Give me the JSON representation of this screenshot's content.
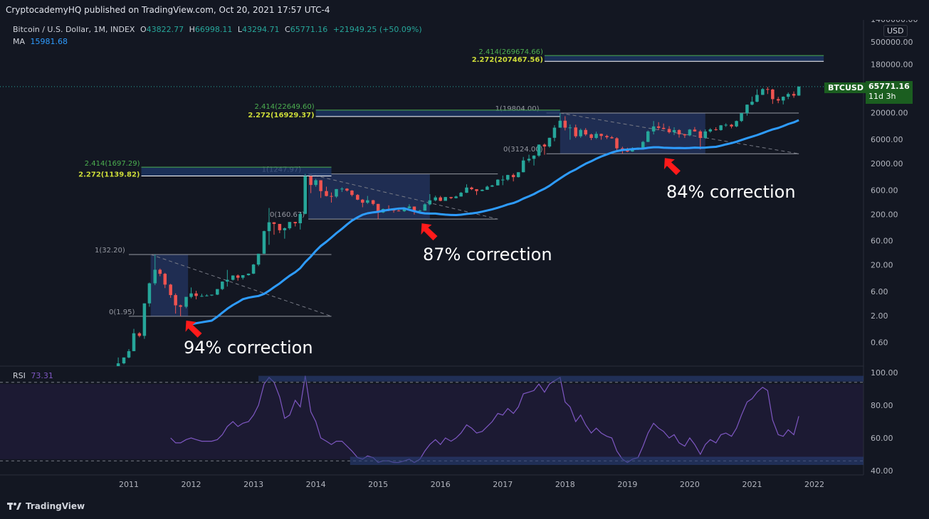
{
  "header": {
    "publisher": "CryptocademyHQ published on TradingView.com, Oct 20, 2021 17:57 UTC-4"
  },
  "legend": {
    "symbol": "Bitcoin / U.S. Dollar, 1M, INDEX",
    "o_label": "O",
    "o_value": "43822.77",
    "h_label": "H",
    "h_value": "66998.11",
    "l_label": "L",
    "l_value": "43294.71",
    "c_label": "C",
    "c_value": "65771.16",
    "change": "+21949.25 (+50.09%)",
    "ma_label": "MA",
    "ma_value": "15981.68",
    "rsi_label": "RSI",
    "rsi_value": "73.31"
  },
  "price_badge": {
    "symbol": "BTCUSD",
    "price": "65771.16",
    "countdown": "11d 3h"
  },
  "currency": "USD",
  "branding": "TradingView",
  "colors": {
    "up": "#26a69a",
    "down": "#ef5350",
    "ma": "#2e9cff",
    "rsi": "#7e57c2",
    "fib_green": "#4caf50",
    "box": "#2a3f7a",
    "arrow": "#ff1a1a"
  },
  "chart_data": {
    "type": "candlestick",
    "scale": "log",
    "y_ticks": [
      "1400000.00",
      "500000.00",
      "180000.00",
      "60000.00",
      "20000.00",
      "6000.00",
      "2000.00",
      "600.00",
      "200.00",
      "60.00",
      "20.00",
      "6.00",
      "2.00",
      "0.60"
    ],
    "x_ticks": [
      "2011",
      "2012",
      "2013",
      "2014",
      "2015",
      "2016",
      "2017",
      "2018",
      "2019",
      "2020",
      "2021",
      "2022"
    ],
    "rsi_ticks": [
      "100.00",
      "80.00",
      "60.00",
      "40.00"
    ],
    "ohlc": [
      [
        2010.75,
        0.06,
        0.2,
        0.06,
        0.2
      ],
      [
        2010.83,
        0.2,
        0.3,
        0.18,
        0.23
      ],
      [
        2010.92,
        0.23,
        0.3,
        0.22,
        0.3
      ],
      [
        2011.0,
        0.3,
        0.44,
        0.29,
        0.4
      ],
      [
        2011.08,
        0.4,
        1.1,
        0.4,
        0.9
      ],
      [
        2011.17,
        0.9,
        0.95,
        0.75,
        0.8
      ],
      [
        2011.25,
        0.8,
        3.5,
        0.7,
        3.5
      ],
      [
        2011.33,
        3.5,
        9,
        3,
        8.7
      ],
      [
        2011.42,
        8.7,
        32,
        8,
        16.1
      ],
      [
        2011.5,
        16.1,
        17,
        12,
        13.4
      ],
      [
        2011.58,
        13.4,
        14,
        7,
        8.2
      ],
      [
        2011.67,
        8.2,
        8.5,
        4.5,
        5.1
      ],
      [
        2011.75,
        5.1,
        5.5,
        2.2,
        3.2
      ],
      [
        2011.83,
        3.2,
        3.3,
        1.95,
        3
      ],
      [
        2011.92,
        3,
        4.5,
        2.8,
        4.7
      ],
      [
        2012.0,
        4.7,
        7.2,
        4.4,
        5.5
      ],
      [
        2012.08,
        5.5,
        6.2,
        4.2,
        4.9
      ],
      [
        2012.17,
        4.9,
        5.4,
        4.7,
        4.9
      ],
      [
        2012.25,
        4.9,
        5.3,
        4.8,
        5
      ],
      [
        2012.33,
        5,
        5.2,
        4.9,
        5.2
      ],
      [
        2012.42,
        5.2,
        6.7,
        5.1,
        6.7
      ],
      [
        2012.5,
        6.7,
        9.5,
        6.4,
        9.4
      ],
      [
        2012.58,
        9.4,
        16,
        7.5,
        10.2
      ],
      [
        2012.67,
        10.2,
        12.5,
        9.9,
        12.4
      ],
      [
        2012.75,
        12.4,
        13,
        9.8,
        11.2
      ],
      [
        2012.83,
        11.2,
        12.6,
        10.3,
        12.6
      ],
      [
        2012.92,
        12.6,
        13.6,
        12.3,
        13.5
      ],
      [
        2013.0,
        13.5,
        21,
        13.2,
        20.4
      ],
      [
        2013.08,
        20.4,
        33,
        19,
        33.4
      ],
      [
        2013.17,
        33.4,
        95,
        33,
        93
      ],
      [
        2013.25,
        93,
        266,
        50,
        139
      ],
      [
        2013.33,
        139,
        140,
        79,
        129
      ],
      [
        2013.42,
        129,
        129,
        85,
        97
      ],
      [
        2013.5,
        97,
        110,
        66,
        106
      ],
      [
        2013.58,
        106,
        140,
        99,
        141
      ],
      [
        2013.67,
        141,
        142,
        115,
        133
      ],
      [
        2013.75,
        133,
        220,
        100,
        204
      ],
      [
        2013.83,
        204,
        1247.97,
        200,
        1130
      ],
      [
        2013.92,
        1130,
        1150,
        522,
        757
      ],
      [
        2014.0,
        757,
        1000,
        700,
        938
      ],
      [
        2014.08,
        938,
        940,
        420,
        573
      ],
      [
        2014.17,
        573,
        700,
        450,
        458
      ],
      [
        2014.25,
        458,
        538,
        340,
        447
      ],
      [
        2014.33,
        447,
        630,
        420,
        628
      ],
      [
        2014.42,
        628,
        680,
        550,
        640
      ],
      [
        2014.5,
        640,
        655,
        560,
        586
      ],
      [
        2014.58,
        586,
        600,
        450,
        481
      ],
      [
        2014.67,
        481,
        500,
        380,
        388
      ],
      [
        2014.75,
        388,
        400,
        275,
        338
      ],
      [
        2014.83,
        338,
        460,
        320,
        378
      ],
      [
        2014.92,
        378,
        385,
        300,
        320
      ],
      [
        2015.0,
        320,
        320,
        160.67,
        217
      ],
      [
        2015.08,
        217,
        260,
        211,
        254
      ],
      [
        2015.17,
        254,
        300,
        230,
        244
      ],
      [
        2015.25,
        244,
        260,
        215,
        236
      ],
      [
        2015.33,
        236,
        247,
        228,
        230
      ],
      [
        2015.42,
        230,
        265,
        222,
        264
      ],
      [
        2015.5,
        264,
        315,
        260,
        284
      ],
      [
        2015.58,
        284,
        285,
        198,
        230
      ],
      [
        2015.67,
        230,
        245,
        224,
        236
      ],
      [
        2015.75,
        236,
        330,
        236,
        314
      ],
      [
        2015.83,
        314,
        500,
        300,
        377
      ],
      [
        2015.92,
        377,
        465,
        360,
        430
      ],
      [
        2016.0,
        430,
        460,
        360,
        368
      ],
      [
        2016.08,
        368,
        440,
        368,
        437
      ],
      [
        2016.17,
        437,
        440,
        400,
        416
      ],
      [
        2016.25,
        416,
        465,
        410,
        448
      ],
      [
        2016.33,
        448,
        550,
        445,
        531
      ],
      [
        2016.42,
        531,
        780,
        525,
        673
      ],
      [
        2016.5,
        673,
        700,
        600,
        624
      ],
      [
        2016.58,
        624,
        625,
        480,
        575
      ],
      [
        2016.67,
        575,
        620,
        570,
        608
      ],
      [
        2016.75,
        608,
        735,
        605,
        700
      ],
      [
        2016.83,
        700,
        760,
        690,
        742
      ],
      [
        2016.92,
        742,
        980,
        740,
        963
      ],
      [
        2017.0,
        963,
        1160,
        750,
        965
      ],
      [
        2017.08,
        965,
        1200,
        910,
        1190
      ],
      [
        2017.17,
        1190,
        1280,
        890,
        1080
      ],
      [
        2017.25,
        1080,
        1350,
        1060,
        1350
      ],
      [
        2017.33,
        1350,
        2700,
        1340,
        2300
      ],
      [
        2017.42,
        2300,
        2990,
        2100,
        2480
      ],
      [
        2017.5,
        2480,
        2920,
        1830,
        2870
      ],
      [
        2017.58,
        2870,
        4750,
        2700,
        4730
      ],
      [
        2017.67,
        4730,
        4980,
        2980,
        4340
      ],
      [
        2017.75,
        4340,
        6470,
        4100,
        6440
      ],
      [
        2017.83,
        6440,
        11400,
        5500,
        10200
      ],
      [
        2017.92,
        10200,
        19804,
        10200,
        14000
      ],
      [
        2018.0,
        14000,
        17200,
        9000,
        10200
      ],
      [
        2018.08,
        10200,
        11800,
        5900,
        10300
      ],
      [
        2018.17,
        10300,
        11700,
        6400,
        6900
      ],
      [
        2018.25,
        6900,
        9800,
        6400,
        9200
      ],
      [
        2018.33,
        9200,
        10000,
        7000,
        7500
      ],
      [
        2018.42,
        7500,
        7800,
        5800,
        6400
      ],
      [
        2018.5,
        6400,
        8500,
        6100,
        7700
      ],
      [
        2018.58,
        7700,
        7800,
        5900,
        7000
      ],
      [
        2018.67,
        7000,
        7400,
        6100,
        6600
      ],
      [
        2018.75,
        6600,
        7000,
        6200,
        6300
      ],
      [
        2018.83,
        6300,
        6600,
        3700,
        4000
      ],
      [
        2018.92,
        4000,
        4300,
        3124,
        3700
      ],
      [
        2019.0,
        3700,
        4100,
        3350,
        3450
      ],
      [
        2019.08,
        3450,
        4200,
        3400,
        3800
      ],
      [
        2019.17,
        3800,
        4150,
        3700,
        4100
      ],
      [
        2019.25,
        4100,
        5600,
        4050,
        5350
      ],
      [
        2019.33,
        5350,
        9000,
        5300,
        8600
      ],
      [
        2019.42,
        8600,
        13800,
        7500,
        10800
      ],
      [
        2019.5,
        10800,
        13100,
        9100,
        10100
      ],
      [
        2019.58,
        10100,
        12300,
        9400,
        9600
      ],
      [
        2019.67,
        9600,
        10900,
        7800,
        8300
      ],
      [
        2019.75,
        8300,
        10400,
        7300,
        9150
      ],
      [
        2019.83,
        9150,
        9500,
        6500,
        7550
      ],
      [
        2019.92,
        7550,
        7750,
        6400,
        7200
      ],
      [
        2020.0,
        7200,
        9600,
        6900,
        9350
      ],
      [
        2020.08,
        9350,
        10500,
        8500,
        8600
      ],
      [
        2020.17,
        8600,
        9200,
        3800,
        6400
      ],
      [
        2020.25,
        6400,
        9450,
        6150,
        8600
      ],
      [
        2020.33,
        8600,
        10000,
        8100,
        9450
      ],
      [
        2020.42,
        9450,
        10400,
        8900,
        9150
      ],
      [
        2020.5,
        9150,
        11500,
        8900,
        11350
      ],
      [
        2020.58,
        11350,
        12450,
        10600,
        11650
      ],
      [
        2020.67,
        11650,
        12100,
        9900,
        10800
      ],
      [
        2020.75,
        10800,
        14100,
        10400,
        13800
      ],
      [
        2020.83,
        13800,
        19850,
        13200,
        19700
      ],
      [
        2020.92,
        19700,
        29300,
        17600,
        29000
      ],
      [
        2021.0,
        29000,
        41900,
        28200,
        33100
      ],
      [
        2021.08,
        33100,
        58300,
        32300,
        45200
      ],
      [
        2021.17,
        45200,
        61800,
        45000,
        58800
      ],
      [
        2021.25,
        58800,
        64900,
        47000,
        57700
      ],
      [
        2021.33,
        57700,
        59500,
        30000,
        37300
      ],
      [
        2021.42,
        37300,
        41300,
        31000,
        35000
      ],
      [
        2021.5,
        35000,
        42300,
        29300,
        41500
      ],
      [
        2021.58,
        41500,
        50500,
        37300,
        47100
      ],
      [
        2021.67,
        47100,
        52900,
        39600,
        43800
      ],
      [
        2021.75,
        43822.77,
        66998.11,
        43294.71,
        65771.16
      ]
    ],
    "ma_start": 2012.0,
    "fib_sets": [
      {
        "one": "1(32.20)",
        "zero": "0(1.95)",
        "ext1": "",
        "ext2": ""
      },
      {
        "one": "1(1247.97)",
        "zero": "0(160.67)",
        "ext1": "2.414(1697.29)",
        "ext2": "2.272(1139.82)"
      },
      {
        "one": "1(19804.00)",
        "zero": "0(3124.00)",
        "ext1": "2.414(22649.60)",
        "ext2": "2.272(16929.37)"
      },
      {
        "one": "",
        "zero": "",
        "ext1": "2.414(269674.66)",
        "ext2": "2.272(207467.56)"
      }
    ],
    "annotations": [
      "94% correction",
      "87% correction",
      "84% correction"
    ],
    "rsi": [
      [
        2011.67,
        60
      ],
      [
        2011.75,
        57
      ],
      [
        2011.83,
        57
      ],
      [
        2011.92,
        59
      ],
      [
        2012.0,
        60
      ],
      [
        2012.08,
        59
      ],
      [
        2012.17,
        58
      ],
      [
        2012.25,
        58
      ],
      [
        2012.33,
        58
      ],
      [
        2012.42,
        59
      ],
      [
        2012.5,
        62
      ],
      [
        2012.58,
        67
      ],
      [
        2012.67,
        70
      ],
      [
        2012.75,
        67
      ],
      [
        2012.83,
        69
      ],
      [
        2012.92,
        70
      ],
      [
        2013.0,
        74
      ],
      [
        2013.08,
        80
      ],
      [
        2013.17,
        93
      ],
      [
        2013.25,
        97
      ],
      [
        2013.33,
        94
      ],
      [
        2013.42,
        85
      ],
      [
        2013.5,
        72
      ],
      [
        2013.58,
        74
      ],
      [
        2013.67,
        83
      ],
      [
        2013.75,
        79
      ],
      [
        2013.83,
        98
      ],
      [
        2013.92,
        76
      ],
      [
        2014.0,
        70
      ],
      [
        2014.08,
        60
      ],
      [
        2014.17,
        58
      ],
      [
        2014.25,
        56
      ],
      [
        2014.33,
        58
      ],
      [
        2014.42,
        58
      ],
      [
        2014.5,
        55
      ],
      [
        2014.58,
        52
      ],
      [
        2014.67,
        48
      ],
      [
        2014.75,
        47
      ],
      [
        2014.83,
        49
      ],
      [
        2014.92,
        48
      ],
      [
        2015.0,
        45
      ],
      [
        2015.08,
        46
      ],
      [
        2015.17,
        46
      ],
      [
        2015.25,
        45
      ],
      [
        2015.33,
        45
      ],
      [
        2015.42,
        46
      ],
      [
        2015.5,
        47
      ],
      [
        2015.58,
        45
      ],
      [
        2015.67,
        47
      ],
      [
        2015.75,
        52
      ],
      [
        2015.83,
        56
      ],
      [
        2015.92,
        59
      ],
      [
        2016.0,
        56
      ],
      [
        2016.08,
        60
      ],
      [
        2016.17,
        58
      ],
      [
        2016.25,
        60
      ],
      [
        2016.33,
        63
      ],
      [
        2016.42,
        68
      ],
      [
        2016.5,
        66
      ],
      [
        2016.58,
        63
      ],
      [
        2016.67,
        64
      ],
      [
        2016.75,
        67
      ],
      [
        2016.83,
        70
      ],
      [
        2016.92,
        75
      ],
      [
        2017.0,
        74
      ],
      [
        2017.08,
        78
      ],
      [
        2017.17,
        75
      ],
      [
        2017.25,
        79
      ],
      [
        2017.33,
        87
      ],
      [
        2017.42,
        88
      ],
      [
        2017.5,
        89
      ],
      [
        2017.58,
        93
      ],
      [
        2017.67,
        88
      ],
      [
        2017.75,
        93
      ],
      [
        2017.83,
        95
      ],
      [
        2017.92,
        97
      ],
      [
        2018.0,
        82
      ],
      [
        2018.08,
        79
      ],
      [
        2018.17,
        70
      ],
      [
        2018.25,
        74
      ],
      [
        2018.33,
        68
      ],
      [
        2018.42,
        63
      ],
      [
        2018.5,
        66
      ],
      [
        2018.58,
        63
      ],
      [
        2018.67,
        61
      ],
      [
        2018.75,
        60
      ],
      [
        2018.83,
        52
      ],
      [
        2018.92,
        47
      ],
      [
        2019.0,
        45
      ],
      [
        2019.08,
        47
      ],
      [
        2019.17,
        48
      ],
      [
        2019.25,
        55
      ],
      [
        2019.33,
        63
      ],
      [
        2019.42,
        69
      ],
      [
        2019.5,
        66
      ],
      [
        2019.58,
        64
      ],
      [
        2019.67,
        60
      ],
      [
        2019.75,
        62
      ],
      [
        2019.83,
        57
      ],
      [
        2019.92,
        55
      ],
      [
        2020.0,
        60
      ],
      [
        2020.08,
        56
      ],
      [
        2020.17,
        50
      ],
      [
        2020.25,
        56
      ],
      [
        2020.33,
        59
      ],
      [
        2020.42,
        57
      ],
      [
        2020.5,
        62
      ],
      [
        2020.58,
        63
      ],
      [
        2020.67,
        61
      ],
      [
        2020.75,
        66
      ],
      [
        2020.83,
        74
      ],
      [
        2020.92,
        82
      ],
      [
        2021.0,
        84
      ],
      [
        2021.08,
        88
      ],
      [
        2021.17,
        91
      ],
      [
        2021.25,
        89
      ],
      [
        2021.33,
        71
      ],
      [
        2021.42,
        62
      ],
      [
        2021.5,
        61
      ],
      [
        2021.58,
        65
      ],
      [
        2021.67,
        62
      ],
      [
        2021.75,
        73.31
      ]
    ]
  }
}
